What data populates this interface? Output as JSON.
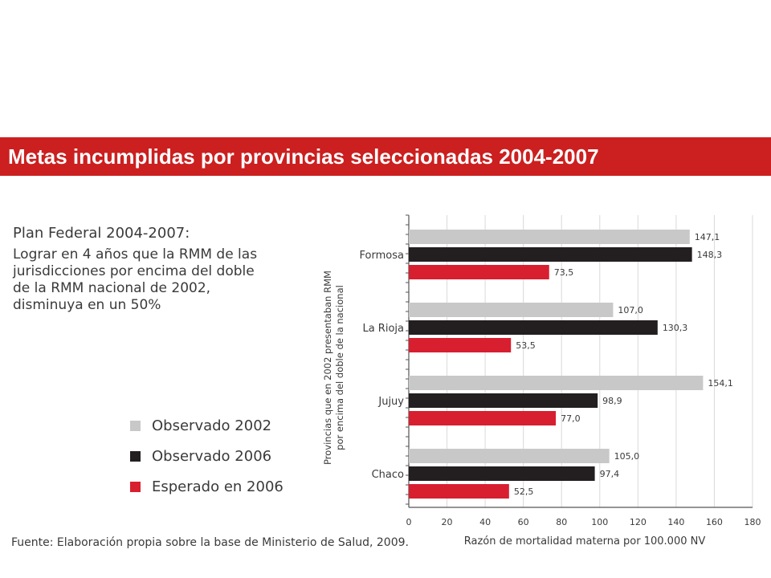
{
  "header": {
    "title": "Metas incumplidas por provincias seleccionadas 2004-2007"
  },
  "plan": {
    "title": "Plan Federal 2004-2007:",
    "lines": [
      "Lograr en 4 años que la RMM de las",
      "jurisdicciones por encima del doble",
      "de la RMM nacional de 2002,",
      "disminuya en un 50%"
    ]
  },
  "legend": [
    {
      "label": "Observado 2002",
      "color": "#c8c8c8"
    },
    {
      "label": "Observado 2006",
      "color": "#231f20"
    },
    {
      "label": "Esperado en 2006",
      "color": "#d71f30"
    }
  ],
  "source": "Fuente: Elaboración propia sobre la base de Ministerio de Salud, 2009.",
  "chart_data": {
    "type": "bar",
    "orientation": "horizontal",
    "categories": [
      "Formosa",
      "La Rioja",
      "Jujuy",
      "Chaco"
    ],
    "series": [
      {
        "name": "Observado 2002",
        "color": "#c8c8c8",
        "values": [
          147.1,
          107.0,
          154.1,
          105.0
        ],
        "labels": [
          "147,1",
          "107,0",
          "154,1",
          "105,0"
        ]
      },
      {
        "name": "Observado 2006",
        "color": "#231f20",
        "values": [
          148.3,
          130.3,
          98.9,
          97.4
        ],
        "labels": [
          "148,3",
          "130,3",
          "98,9",
          "97,4"
        ]
      },
      {
        "name": "Esperado en 2006",
        "color": "#d71f30",
        "values": [
          73.5,
          53.5,
          77.0,
          52.5
        ],
        "labels": [
          "73,5",
          "53,5",
          "77,0",
          "52,5"
        ]
      }
    ],
    "xlabel": "Razón de mortalidad materna por 100.000 NV",
    "ylabel_lines": [
      "Provincias que en 2002 presentaban RMM",
      "por encima del doble de la nacional"
    ],
    "xlim": [
      0,
      180
    ],
    "xticks": [
      0,
      20,
      40,
      60,
      80,
      100,
      120,
      140,
      160,
      180
    ],
    "grid": true
  }
}
